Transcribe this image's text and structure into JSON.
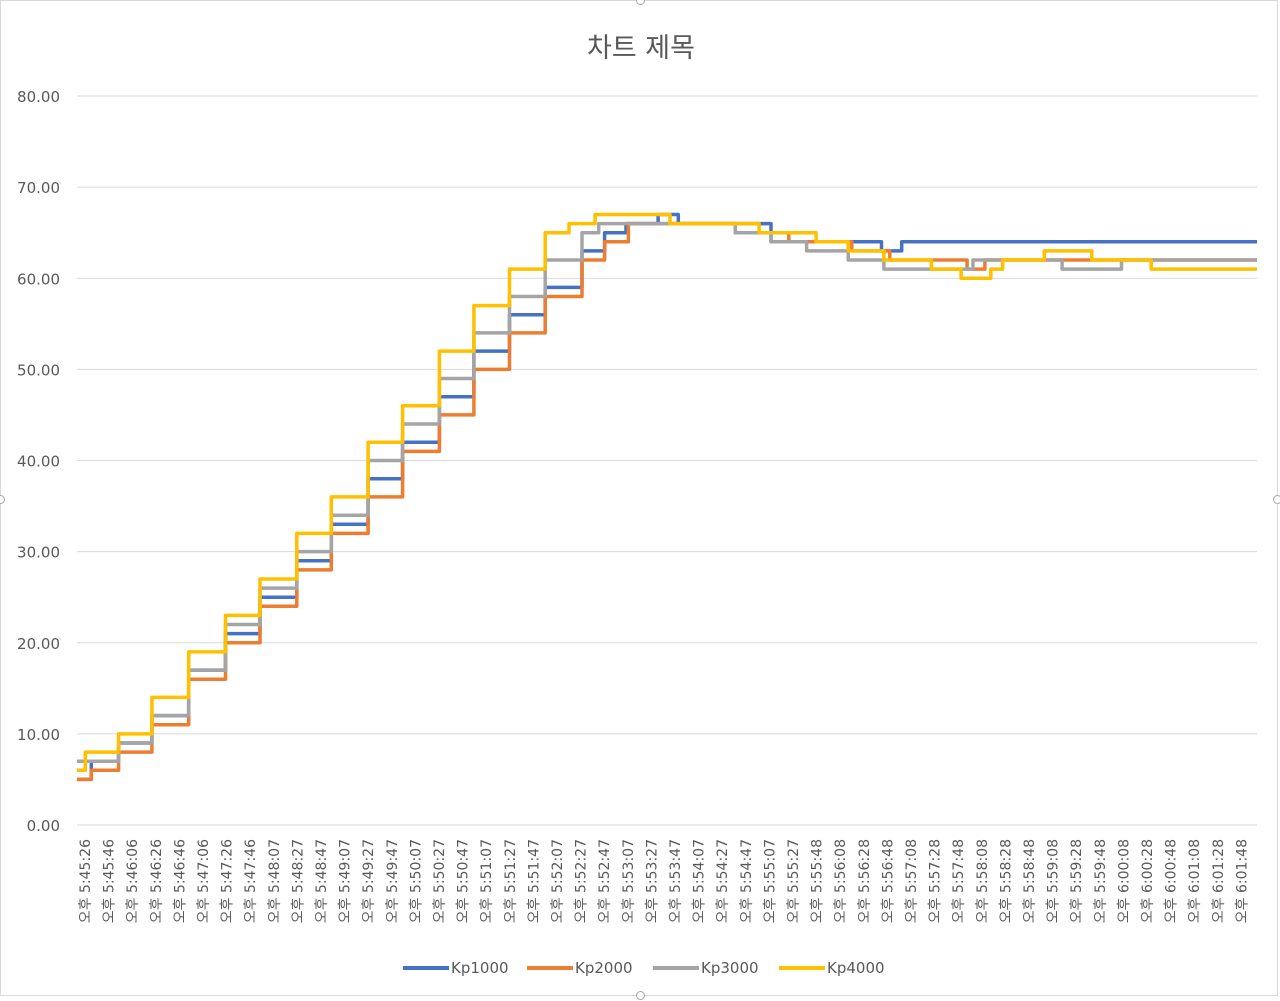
{
  "chart_data": {
    "type": "line",
    "title": "차트 제목",
    "xlabel": "",
    "ylabel": "",
    "ylim": [
      0,
      80
    ],
    "yticks": [
      "0.00",
      "10.00",
      "20.00",
      "30.00",
      "40.00",
      "50.00",
      "60.00",
      "70.00",
      "80.00"
    ],
    "grid": true,
    "legend_position": "bottom",
    "x_time_start": "17:45:26",
    "x_time_end": "18:01:59",
    "categories": [
      "오후 5:45:26",
      "오후 5:45:46",
      "오후 5:46:06",
      "오후 5:46:26",
      "오후 5:46:46",
      "오후 5:47:06",
      "오후 5:47:26",
      "오후 5:47:46",
      "오후 5:48:07",
      "오후 5:48:27",
      "오후 5:48:47",
      "오후 5:49:07",
      "오후 5:49:27",
      "오후 5:49:47",
      "오후 5:50:07",
      "오후 5:50:27",
      "오후 5:50:47",
      "오후 5:51:07",
      "오후 5:51:27",
      "오후 5:51:47",
      "오후 5:52:07",
      "오후 5:52:27",
      "오후 5:52:47",
      "오후 5:53:07",
      "오후 5:53:27",
      "오후 5:53:47",
      "오후 5:54:07",
      "오후 5:54:27",
      "오후 5:54:47",
      "오후 5:55:07",
      "오후 5:55:27",
      "오후 5:55:48",
      "오후 5:56:08",
      "오후 5:56:28",
      "오후 5:56:48",
      "오후 5:57:08",
      "오후 5:57:28",
      "오후 5:57:48",
      "오후 5:58:08",
      "오후 5:58:28",
      "오후 5:58:48",
      "오후 5:59:08",
      "오후 5:59:28",
      "오후 5:59:48",
      "오후 6:00:08",
      "오후 6:00:28",
      "오후 6:00:48",
      "오후 6:01:08",
      "오후 6:01:28",
      "오후 6:01:48"
    ],
    "series": [
      {
        "name": "Kp1000",
        "color": "#4472c4",
        "points": [
          [
            "17:45:26",
            5
          ],
          [
            "17:45:38",
            7
          ],
          [
            "17:46:01",
            9
          ],
          [
            "17:46:29",
            12
          ],
          [
            "17:47:00",
            17
          ],
          [
            "17:47:31",
            21
          ],
          [
            "17:48:00",
            25
          ],
          [
            "17:48:31",
            29
          ],
          [
            "17:49:00",
            33
          ],
          [
            "17:49:31",
            38
          ],
          [
            "17:50:00",
            42
          ],
          [
            "17:50:31",
            47
          ],
          [
            "17:51:00",
            52
          ],
          [
            "17:51:30",
            56
          ],
          [
            "17:52:00",
            59
          ],
          [
            "17:52:31",
            63
          ],
          [
            "17:52:50",
            65
          ],
          [
            "17:53:08",
            66
          ],
          [
            "17:53:35",
            67
          ],
          [
            "17:53:52",
            66
          ],
          [
            "17:54:20",
            66
          ],
          [
            "17:55:10",
            64
          ],
          [
            "17:56:18",
            64
          ],
          [
            "17:56:43",
            63
          ],
          [
            "17:57:00",
            64
          ],
          [
            "17:58:00",
            64
          ],
          [
            "17:59:00",
            64
          ],
          [
            "18:00:00",
            64
          ],
          [
            "18:01:59",
            64
          ]
        ]
      },
      {
        "name": "Kp2000",
        "color": "#ed7d31",
        "points": [
          [
            "17:45:26",
            5
          ],
          [
            "17:45:38",
            6
          ],
          [
            "17:46:01",
            8
          ],
          [
            "17:46:29",
            11
          ],
          [
            "17:47:00",
            16
          ],
          [
            "17:47:31",
            20
          ],
          [
            "17:48:00",
            24
          ],
          [
            "17:48:31",
            28
          ],
          [
            "17:49:00",
            32
          ],
          [
            "17:49:31",
            36
          ],
          [
            "17:50:00",
            41
          ],
          [
            "17:50:31",
            45
          ],
          [
            "17:51:00",
            50
          ],
          [
            "17:51:30",
            54
          ],
          [
            "17:52:00",
            58
          ],
          [
            "17:52:31",
            62
          ],
          [
            "17:52:50",
            64
          ],
          [
            "17:53:10",
            66
          ],
          [
            "17:53:50",
            66
          ],
          [
            "17:54:40",
            65
          ],
          [
            "17:55:25",
            64
          ],
          [
            "17:55:55",
            64
          ],
          [
            "17:56:18",
            63
          ],
          [
            "17:56:50",
            62
          ],
          [
            "17:57:30",
            62
          ],
          [
            "17:57:55",
            61
          ],
          [
            "17:58:10",
            62
          ],
          [
            "17:58:48",
            62
          ],
          [
            "17:59:18",
            62
          ],
          [
            "17:59:40",
            62
          ],
          [
            "18:00:00",
            62
          ],
          [
            "18:01:00",
            62
          ],
          [
            "18:01:59",
            62
          ]
        ]
      },
      {
        "name": "Kp3000",
        "color": "#a5a5a5",
        "points": [
          [
            "17:45:26",
            7
          ],
          [
            "17:45:45",
            7
          ],
          [
            "17:46:01",
            9
          ],
          [
            "17:46:29",
            12
          ],
          [
            "17:47:00",
            17
          ],
          [
            "17:47:31",
            22
          ],
          [
            "17:48:00",
            26
          ],
          [
            "17:48:31",
            30
          ],
          [
            "17:49:00",
            34
          ],
          [
            "17:49:31",
            40
          ],
          [
            "17:50:00",
            44
          ],
          [
            "17:50:31",
            49
          ],
          [
            "17:51:00",
            54
          ],
          [
            "17:51:30",
            58
          ],
          [
            "17:52:00",
            62
          ],
          [
            "17:52:31",
            65
          ],
          [
            "17:52:45",
            66
          ],
          [
            "17:53:30",
            66
          ],
          [
            "17:54:05",
            66
          ],
          [
            "17:54:40",
            65
          ],
          [
            "17:55:10",
            64
          ],
          [
            "17:55:40",
            63
          ],
          [
            "17:56:15",
            62
          ],
          [
            "17:56:45",
            61
          ],
          [
            "17:57:30",
            61
          ],
          [
            "17:58:00",
            62
          ],
          [
            "17:59:00",
            62
          ],
          [
            "17:59:15",
            61
          ],
          [
            "17:59:55",
            61
          ],
          [
            "18:00:05",
            62
          ],
          [
            "18:01:59",
            62
          ]
        ]
      },
      {
        "name": "Kp4000",
        "color": "#ffc000",
        "points": [
          [
            "17:45:26",
            6
          ],
          [
            "17:45:33",
            8
          ],
          [
            "17:46:01",
            10
          ],
          [
            "17:46:29",
            14
          ],
          [
            "17:47:00",
            19
          ],
          [
            "17:47:31",
            23
          ],
          [
            "17:48:00",
            27
          ],
          [
            "17:48:31",
            32
          ],
          [
            "17:49:00",
            36
          ],
          [
            "17:49:31",
            42
          ],
          [
            "17:50:00",
            46
          ],
          [
            "17:50:31",
            52
          ],
          [
            "17:51:00",
            57
          ],
          [
            "17:51:30",
            61
          ],
          [
            "17:52:00",
            65
          ],
          [
            "17:52:20",
            66
          ],
          [
            "17:52:42",
            67
          ],
          [
            "17:53:45",
            66
          ],
          [
            "17:54:35",
            66
          ],
          [
            "17:55:00",
            65
          ],
          [
            "17:55:48",
            64
          ],
          [
            "17:56:15",
            63
          ],
          [
            "17:56:45",
            62
          ],
          [
            "17:57:25",
            61
          ],
          [
            "17:57:50",
            60
          ],
          [
            "17:58:15",
            61
          ],
          [
            "17:58:25",
            62
          ],
          [
            "17:59:00",
            63
          ],
          [
            "17:59:40",
            62
          ],
          [
            "18:00:30",
            61
          ],
          [
            "18:01:59",
            61
          ]
        ]
      }
    ]
  }
}
